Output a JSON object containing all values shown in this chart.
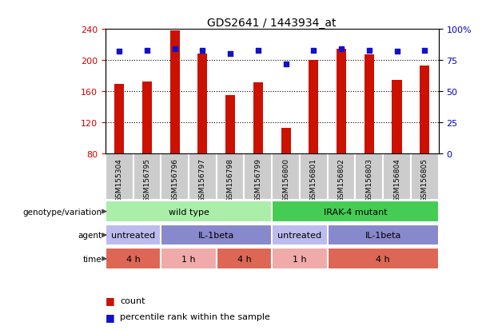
{
  "title": "GDS2641 / 1443934_at",
  "samples": [
    "GSM155304",
    "GSM156795",
    "GSM156796",
    "GSM156797",
    "GSM156798",
    "GSM156799",
    "GSM156800",
    "GSM156801",
    "GSM156802",
    "GSM156803",
    "GSM156804",
    "GSM156805"
  ],
  "counts": [
    170,
    173,
    238,
    208,
    155,
    172,
    113,
    200,
    215,
    207,
    175,
    193
  ],
  "percentiles": [
    82,
    83,
    84,
    83,
    80,
    83,
    72,
    83,
    84,
    83,
    82,
    83
  ],
  "ymin": 80,
  "ymax": 240,
  "yticks_left": [
    80,
    120,
    160,
    200,
    240
  ],
  "yticks_right": [
    0,
    25,
    50,
    75,
    100
  ],
  "bar_color": "#cc1100",
  "dot_color": "#1111cc",
  "genotype_groups": [
    {
      "label": "wild type",
      "start": 0,
      "end": 6,
      "color": "#aaeea9"
    },
    {
      "label": "IRAK-4 mutant",
      "start": 6,
      "end": 12,
      "color": "#44cc55"
    }
  ],
  "agent_groups": [
    {
      "label": "untreated",
      "start": 0,
      "end": 2,
      "color": "#bbbbee"
    },
    {
      "label": "IL-1beta",
      "start": 2,
      "end": 6,
      "color": "#8888cc"
    },
    {
      "label": "untreated",
      "start": 6,
      "end": 8,
      "color": "#bbbbee"
    },
    {
      "label": "IL-1beta",
      "start": 8,
      "end": 12,
      "color": "#8888cc"
    }
  ],
  "time_groups": [
    {
      "label": "4 h",
      "start": 0,
      "end": 2,
      "color": "#dd6655"
    },
    {
      "label": "1 h",
      "start": 2,
      "end": 4,
      "color": "#f0aaaa"
    },
    {
      "label": "4 h",
      "start": 4,
      "end": 6,
      "color": "#dd6655"
    },
    {
      "label": "1 h",
      "start": 6,
      "end": 8,
      "color": "#f0aaaa"
    },
    {
      "label": "4 h",
      "start": 8,
      "end": 12,
      "color": "#dd6655"
    }
  ],
  "row_labels": [
    "genotype/variation",
    "agent",
    "time"
  ],
  "legend_count_color": "#cc1100",
  "legend_dot_color": "#1111cc",
  "bg_color": "#ffffff",
  "tick_label_color_left": "#cc0000",
  "tick_label_color_right": "#0000cc",
  "sample_bg_color": "#cccccc",
  "bar_width": 0.35
}
